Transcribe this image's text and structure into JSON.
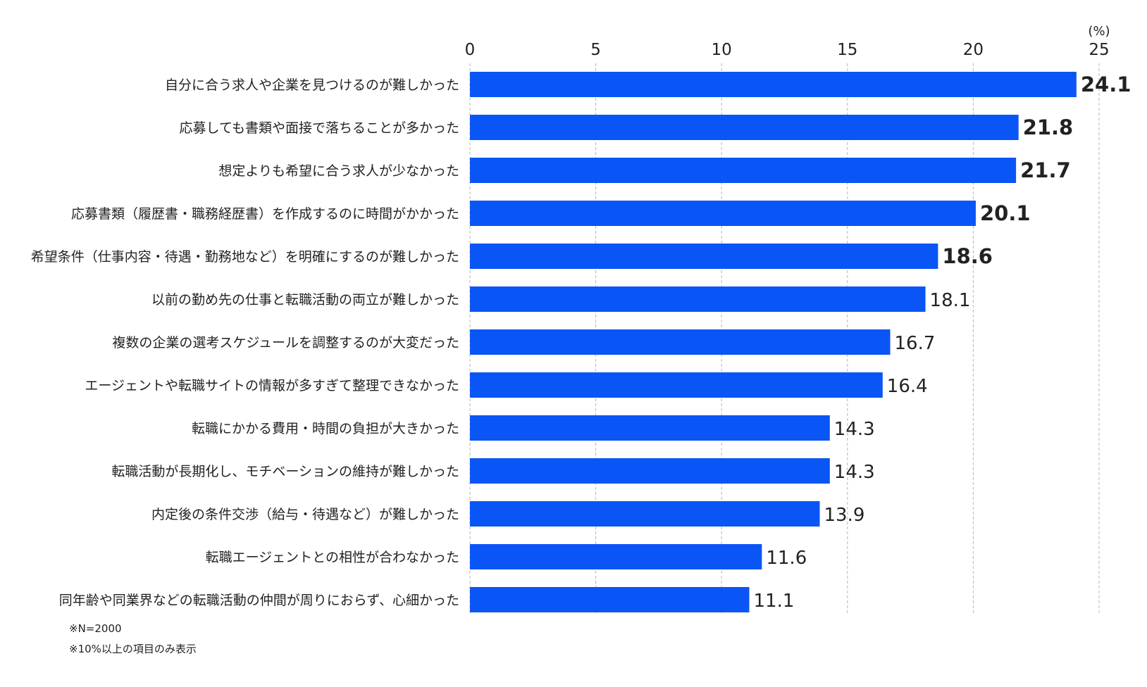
{
  "colors": {
    "bar": "#0a55f5",
    "highlight_text": "#e5194f",
    "normal_text": "#222222",
    "grid": "#b5b5b5"
  },
  "chart_data": {
    "type": "bar",
    "orientation": "horizontal",
    "unit": "(%)",
    "xlim": [
      0,
      25
    ],
    "ticks": [
      0,
      5,
      10,
      15,
      20,
      25
    ],
    "grid": true,
    "categories": [
      "自分に合う求人や企業を見つけるのが難しかった",
      "応募しても書類や面接で落ちることが多かった",
      "想定よりも希望に合う求人が少なかった",
      "応募書類（履歴書・職務経歴書）を作成するのに時間がかかった",
      "希望条件（仕事内容・待遇・勤務地など）を明確にするのが難しかった",
      "以前の勤め先の仕事と転職活動の両立が難しかった",
      "複数の企業の選考スケジュールを調整するのが大変だった",
      "エージェントや転職サイトの情報が多すぎて整理できなかった",
      "転職にかかる費用・時間の負担が大きかった",
      "転職活動が長期化し、モチベーションの維持が難しかった",
      "内定後の条件交渉（給与・待遇など）が難しかった",
      "転職エージェントとの相性が合わなかった",
      "同年齢や同業界などの転職活動の仲間が周りにおらず、心細かった"
    ],
    "values": [
      24.1,
      21.8,
      21.7,
      20.1,
      18.6,
      18.1,
      16.7,
      16.4,
      14.3,
      14.3,
      13.9,
      11.6,
      11.1
    ],
    "value_labels": [
      "24.1",
      "21.8",
      "21.7",
      "20.1",
      "18.6",
      "18.1",
      "16.7",
      "16.4",
      "14.3",
      "14.3",
      "13.9",
      "11.6",
      "11.1"
    ],
    "highlighted_top_n": 5
  },
  "notes": [
    "※N=2000",
    "※10%以上の項目のみ表示"
  ]
}
